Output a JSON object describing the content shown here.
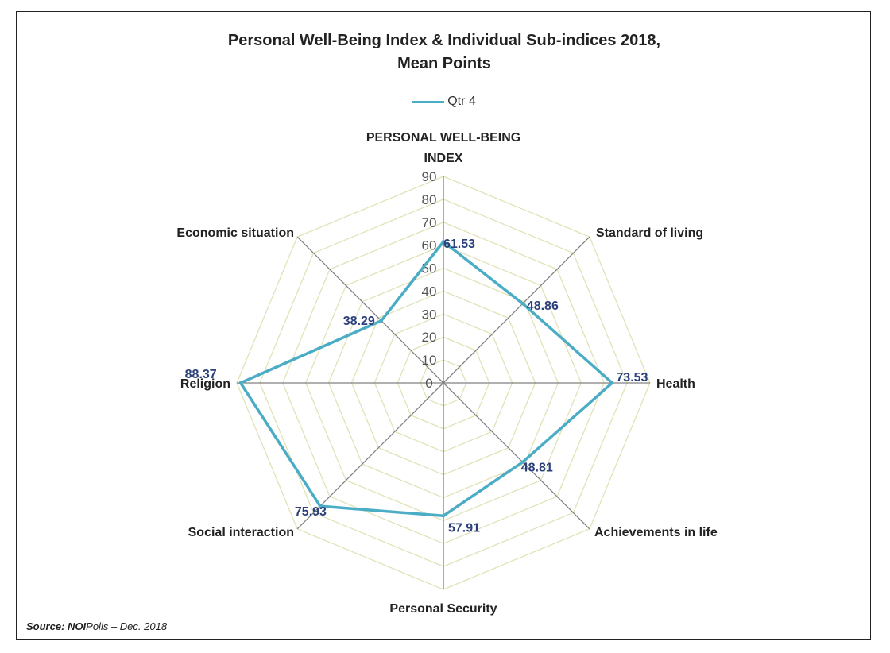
{
  "chart_data": {
    "type": "radar",
    "title_line1": "Personal Well-Being Index & Individual Sub-indices 2018,",
    "title_line2": "Mean Points",
    "categories": [
      "PERSONAL WELL-BEING INDEX",
      "Standard of living",
      "Health",
      "Achievements in life",
      "Personal Security",
      "Social interaction",
      "Religion",
      "Economic situation"
    ],
    "series": [
      {
        "name": "Qtr 4",
        "values": [
          61.53,
          48.86,
          73.53,
          48.81,
          57.91,
          75.93,
          88.37,
          38.29
        ],
        "color": "#4bacc6"
      }
    ],
    "data_labels": [
      "61.53",
      "48.86",
      "73.53",
      "48.81",
      "57.91",
      "75.93",
      "88.37",
      "38.29"
    ],
    "ticks": [
      0,
      10,
      20,
      30,
      40,
      50,
      60,
      70,
      80,
      90
    ],
    "rlim": [
      0,
      90
    ],
    "grid": true,
    "legend_position": "top",
    "gridline_color": "#e2e2b8",
    "spoke_color": "#808080",
    "data_label_color": "#2b3f7a"
  },
  "source": {
    "label": "Source:",
    "org": "NOI",
    "rest": "Polls – Dec. 2018"
  }
}
